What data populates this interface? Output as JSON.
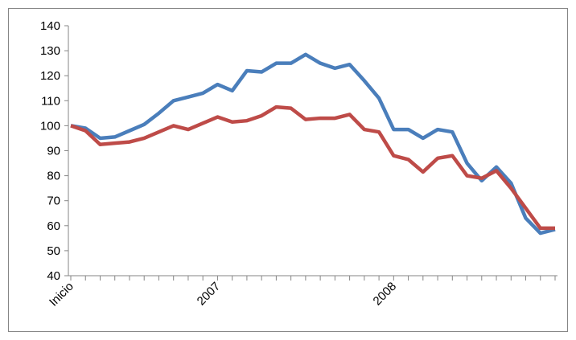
{
  "chart_data": {
    "type": "line",
    "categories": [
      "Inicio",
      null,
      null,
      null,
      null,
      null,
      null,
      null,
      null,
      null,
      "2007",
      null,
      null,
      null,
      null,
      null,
      null,
      null,
      null,
      null,
      null,
      null,
      "2008",
      null,
      null,
      null,
      null,
      null,
      null,
      null,
      null,
      null,
      null,
      null
    ],
    "series": [
      {
        "color": "#4a7ebb",
        "values": [
          100,
          99,
          95,
          95.5,
          98,
          100.5,
          105,
          110,
          111.5,
          113,
          116.5,
          114,
          122,
          121.5,
          125,
          125,
          128.5,
          125,
          123,
          124.5,
          118,
          111,
          98.5,
          98.5,
          95,
          98.5,
          97.5,
          85,
          78,
          83.5,
          77,
          63,
          57,
          58.5
        ]
      },
      {
        "color": "#be4b48",
        "values": [
          100,
          98,
          92.5,
          93,
          93.5,
          95,
          97.5,
          100,
          98.5,
          101,
          103.5,
          101.5,
          102,
          104,
          107.5,
          107,
          102.5,
          103,
          103,
          104.5,
          98.5,
          97.5,
          88,
          86.5,
          81.5,
          87,
          88,
          80,
          79,
          82,
          75,
          67,
          59,
          59
        ]
      }
    ],
    "ylim": [
      40,
      140
    ],
    "yticks": [
      40,
      50,
      60,
      70,
      80,
      90,
      100,
      110,
      120,
      130,
      140
    ],
    "grid": false
  }
}
